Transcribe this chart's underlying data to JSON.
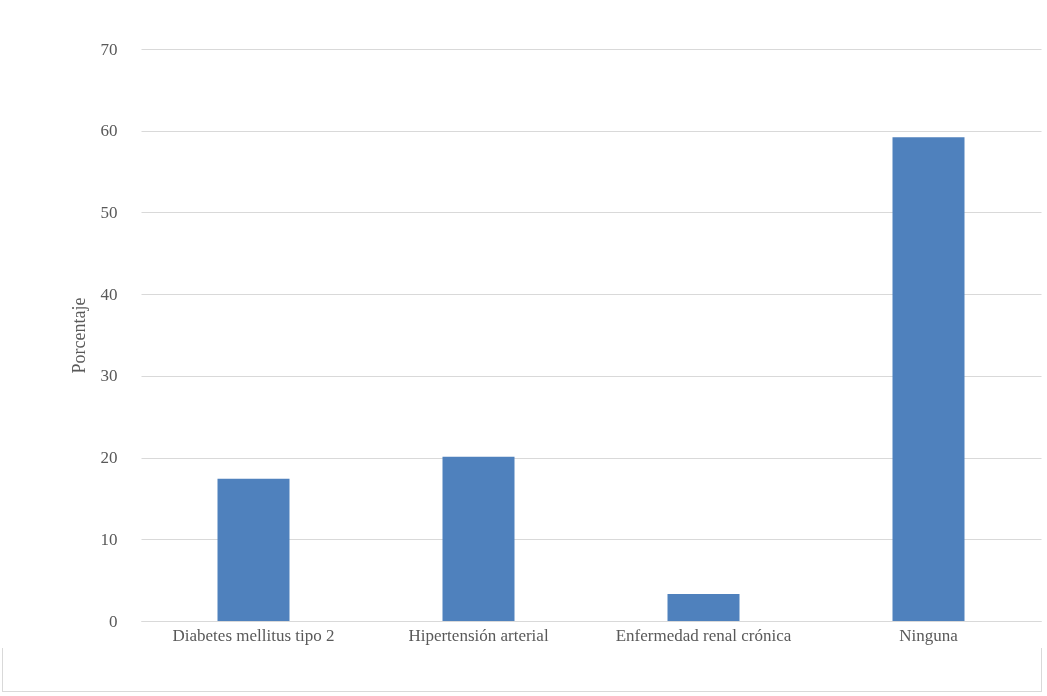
{
  "chart_data": {
    "type": "bar",
    "ylabel": "Porcentaje",
    "categories": [
      "Diabetes mellitus tipo 2",
      "Hipertensión arterial",
      "Enfermedad renal crónica",
      "Ninguna"
    ],
    "values": [
      17.4,
      20.1,
      3.3,
      59.2
    ],
    "color": "#4f81bd",
    "ylim": [
      0,
      70
    ],
    "yticks": [
      0,
      10,
      20,
      30,
      40,
      50,
      60,
      70
    ],
    "grid": "y"
  }
}
